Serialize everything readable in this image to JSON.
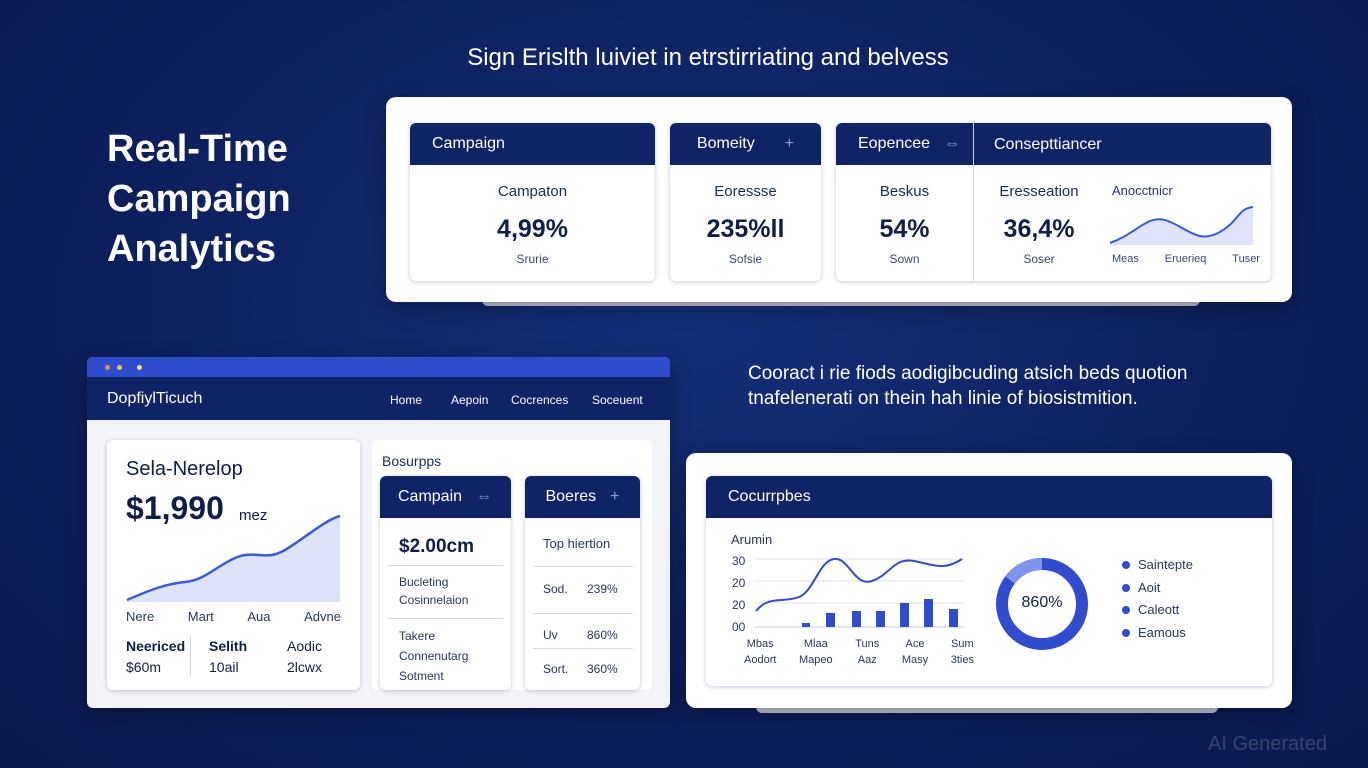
{
  "header": {
    "tagline": "Sign Erislth luiviet in etrstirriating and belvess",
    "title_lines": [
      "Real-Time",
      "Campaign",
      "Analytics"
    ]
  },
  "top_card": {
    "campaign": {
      "header": "Campaign",
      "label": "Campaton",
      "value": "4,99%",
      "sub": "Srurie"
    },
    "bomeity": {
      "header": "Bomeity",
      "label": "Eoressse",
      "value": "235%ll",
      "sub": "Sofsie"
    },
    "wide": {
      "header_left": "Eopencee",
      "header_right": "Consepttiancer",
      "left": {
        "label": "Beskus",
        "value": "54%",
        "sub": "Sown"
      },
      "right": {
        "label": "Eresseation",
        "value": "36,4%",
        "sub": "Soser"
      },
      "spark_title": "Anocctnicr",
      "spark_axis": [
        "Meas",
        "Eruerieq",
        "Tuser"
      ]
    }
  },
  "paragraph": [
    "Cooract i rie fiods aodigibcuding atsich beds quotion",
    "tnafelenerati on thein hah linie of biosistmition."
  ],
  "window": {
    "brand": "DopfiylTicuch",
    "nav": [
      "Home",
      "Aepoin",
      "Cocrences",
      "Soceuent"
    ],
    "summary": {
      "title": "Sela-Nerelop",
      "value": "$1,990",
      "unit": "mez",
      "axis": [
        "Nere",
        "Mart",
        "Aua",
        "Advne"
      ],
      "stats": [
        [
          "Neericed",
          "$60m"
        ],
        [
          "Selith",
          "10ail"
        ],
        [
          "Aodic",
          "2lcwx"
        ]
      ]
    },
    "section_label": "Bosurpps",
    "campain": {
      "header": "Campain",
      "value": "$2.00cm",
      "items": [
        "Bucleting Cosinnelaion",
        "Takere Connenutarg Sotment"
      ]
    },
    "boeres": {
      "header": "Boeres",
      "title": "Top hiertion",
      "rows": [
        [
          "Sod.",
          "239%"
        ],
        [
          "Uv",
          "860%"
        ],
        [
          "Sort.",
          "360%"
        ]
      ]
    }
  },
  "chart_card": {
    "header": "Cocurrpbes",
    "chart_title": "Arumin",
    "y_labels": [
      "30",
      "20",
      "20",
      "00"
    ],
    "x_labels": [
      [
        "Mbas",
        "Aodort"
      ],
      [
        "Mlaa",
        "Mapeo"
      ],
      [
        "Tuns",
        "Aaz"
      ],
      [
        "Ace",
        "Masy"
      ],
      [
        "Sum",
        "3ties"
      ]
    ],
    "donut_label": "860%",
    "legend": [
      "Saintepte",
      "Aoit",
      "Caleott",
      "Eamous"
    ]
  },
  "watermark": "AI Generated"
}
